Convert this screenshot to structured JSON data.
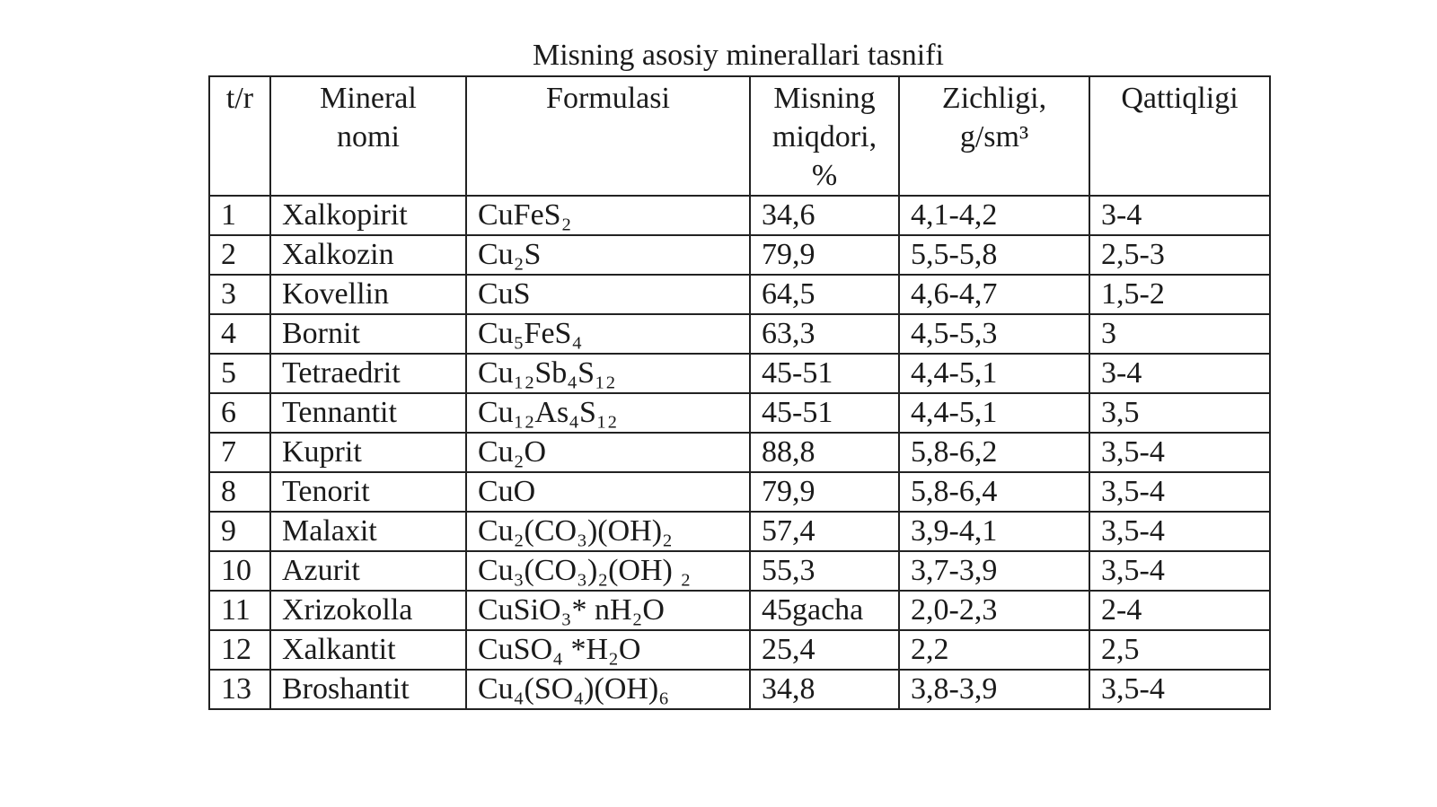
{
  "title": "Misning asosiy minerallari tasnifi",
  "table": {
    "header": [
      "t/r",
      "Mineral\nnomi",
      "Formulasi",
      "Misning\nmiqdori,\n%",
      "Zichligi,\ng/sm³",
      "Qattiqligi"
    ],
    "rows": [
      [
        "1",
        "Xalkopirit",
        "CuFeS₂",
        "34,6",
        "4,1-4,2",
        "3-4"
      ],
      [
        "2",
        "Xalkozin",
        "Cu₂S",
        "79,9",
        "5,5-5,8",
        "2,5-3"
      ],
      [
        "3",
        "Kovellin",
        "CuS",
        "64,5",
        "4,6-4,7",
        "1,5-2"
      ],
      [
        "4",
        "Bornit",
        "Cu₅FeS₄",
        "63,3",
        "4,5-5,3",
        "3"
      ],
      [
        "5",
        "Tetraedrit",
        "Cu₁₂Sb₄S₁₂",
        "45-51",
        "4,4-5,1",
        "3-4"
      ],
      [
        "6",
        "Tennantit",
        "Cu₁₂As₄S₁₂",
        "45-51",
        "4,4-5,1",
        "3,5"
      ],
      [
        "7",
        "Kuprit",
        "Cu₂O",
        "88,8",
        "5,8-6,2",
        "3,5-4"
      ],
      [
        "8",
        "Tenorit",
        "CuO",
        "79,9",
        "5,8-6,4",
        "3,5-4"
      ],
      [
        "9",
        "Malaxit",
        "Cu₂(CO₃)(OH)₂",
        "57,4",
        "3,9-4,1",
        "3,5-4"
      ],
      [
        "10",
        "Azurit",
        "Cu₃(CO₃)₂(OH) ₂",
        "55,3",
        "3,7-3,9",
        "3,5-4"
      ],
      [
        "11",
        "Xrizokolla",
        "CuSiO₃* nH₂O",
        "45gacha",
        "2,0-2,3",
        "2-4"
      ],
      [
        "12",
        "Xalkantit",
        "CuSO₄ *H₂O",
        "25,4",
        "2,2",
        "2,5"
      ],
      [
        "13",
        "Broshantit",
        "Cu₄(SO₄)(OH)₆",
        "34,8",
        "3,8-3,9",
        "3,5-4"
      ]
    ]
  }
}
